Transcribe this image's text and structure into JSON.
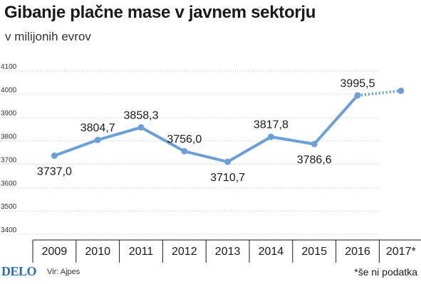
{
  "header": {
    "title": "Gibanje plačne mase v javnem sektorju",
    "subtitle": "v milijonih evrov"
  },
  "footer": {
    "brand": "DELO",
    "source": "Vir: Ajpes",
    "note": "*še ni podatka"
  },
  "colors": {
    "line": "#6a9fd8",
    "point": "#6a9fd8",
    "axis": "#1a1a1a",
    "brand": "#2a6db5"
  },
  "chart_data": {
    "type": "line",
    "title": "Gibanje plačne mase v javnem sektorju",
    "subtitle": "v milijonih evrov",
    "categories": [
      "2009",
      "2010",
      "2011",
      "2012",
      "2013",
      "2014",
      "2015",
      "2016",
      "2017*"
    ],
    "y_ticks": [
      "3400",
      "3500",
      "3600",
      "3700",
      "3800",
      "3900",
      "4000",
      "4100"
    ],
    "ylim": [
      3400,
      4100
    ],
    "grid": true,
    "series": [
      {
        "values": [
          3737.0,
          3804.7,
          3858.3,
          3756.0,
          3710.7,
          3817.8,
          3786.6,
          3995.5,
          4015
        ],
        "labels": [
          "3737,0",
          "3804,7",
          "3858,3",
          "3756,0",
          "3710,7",
          "3817,8",
          "3786,6",
          "3995,5",
          ""
        ],
        "dashed_last_segment": true
      }
    ]
  }
}
